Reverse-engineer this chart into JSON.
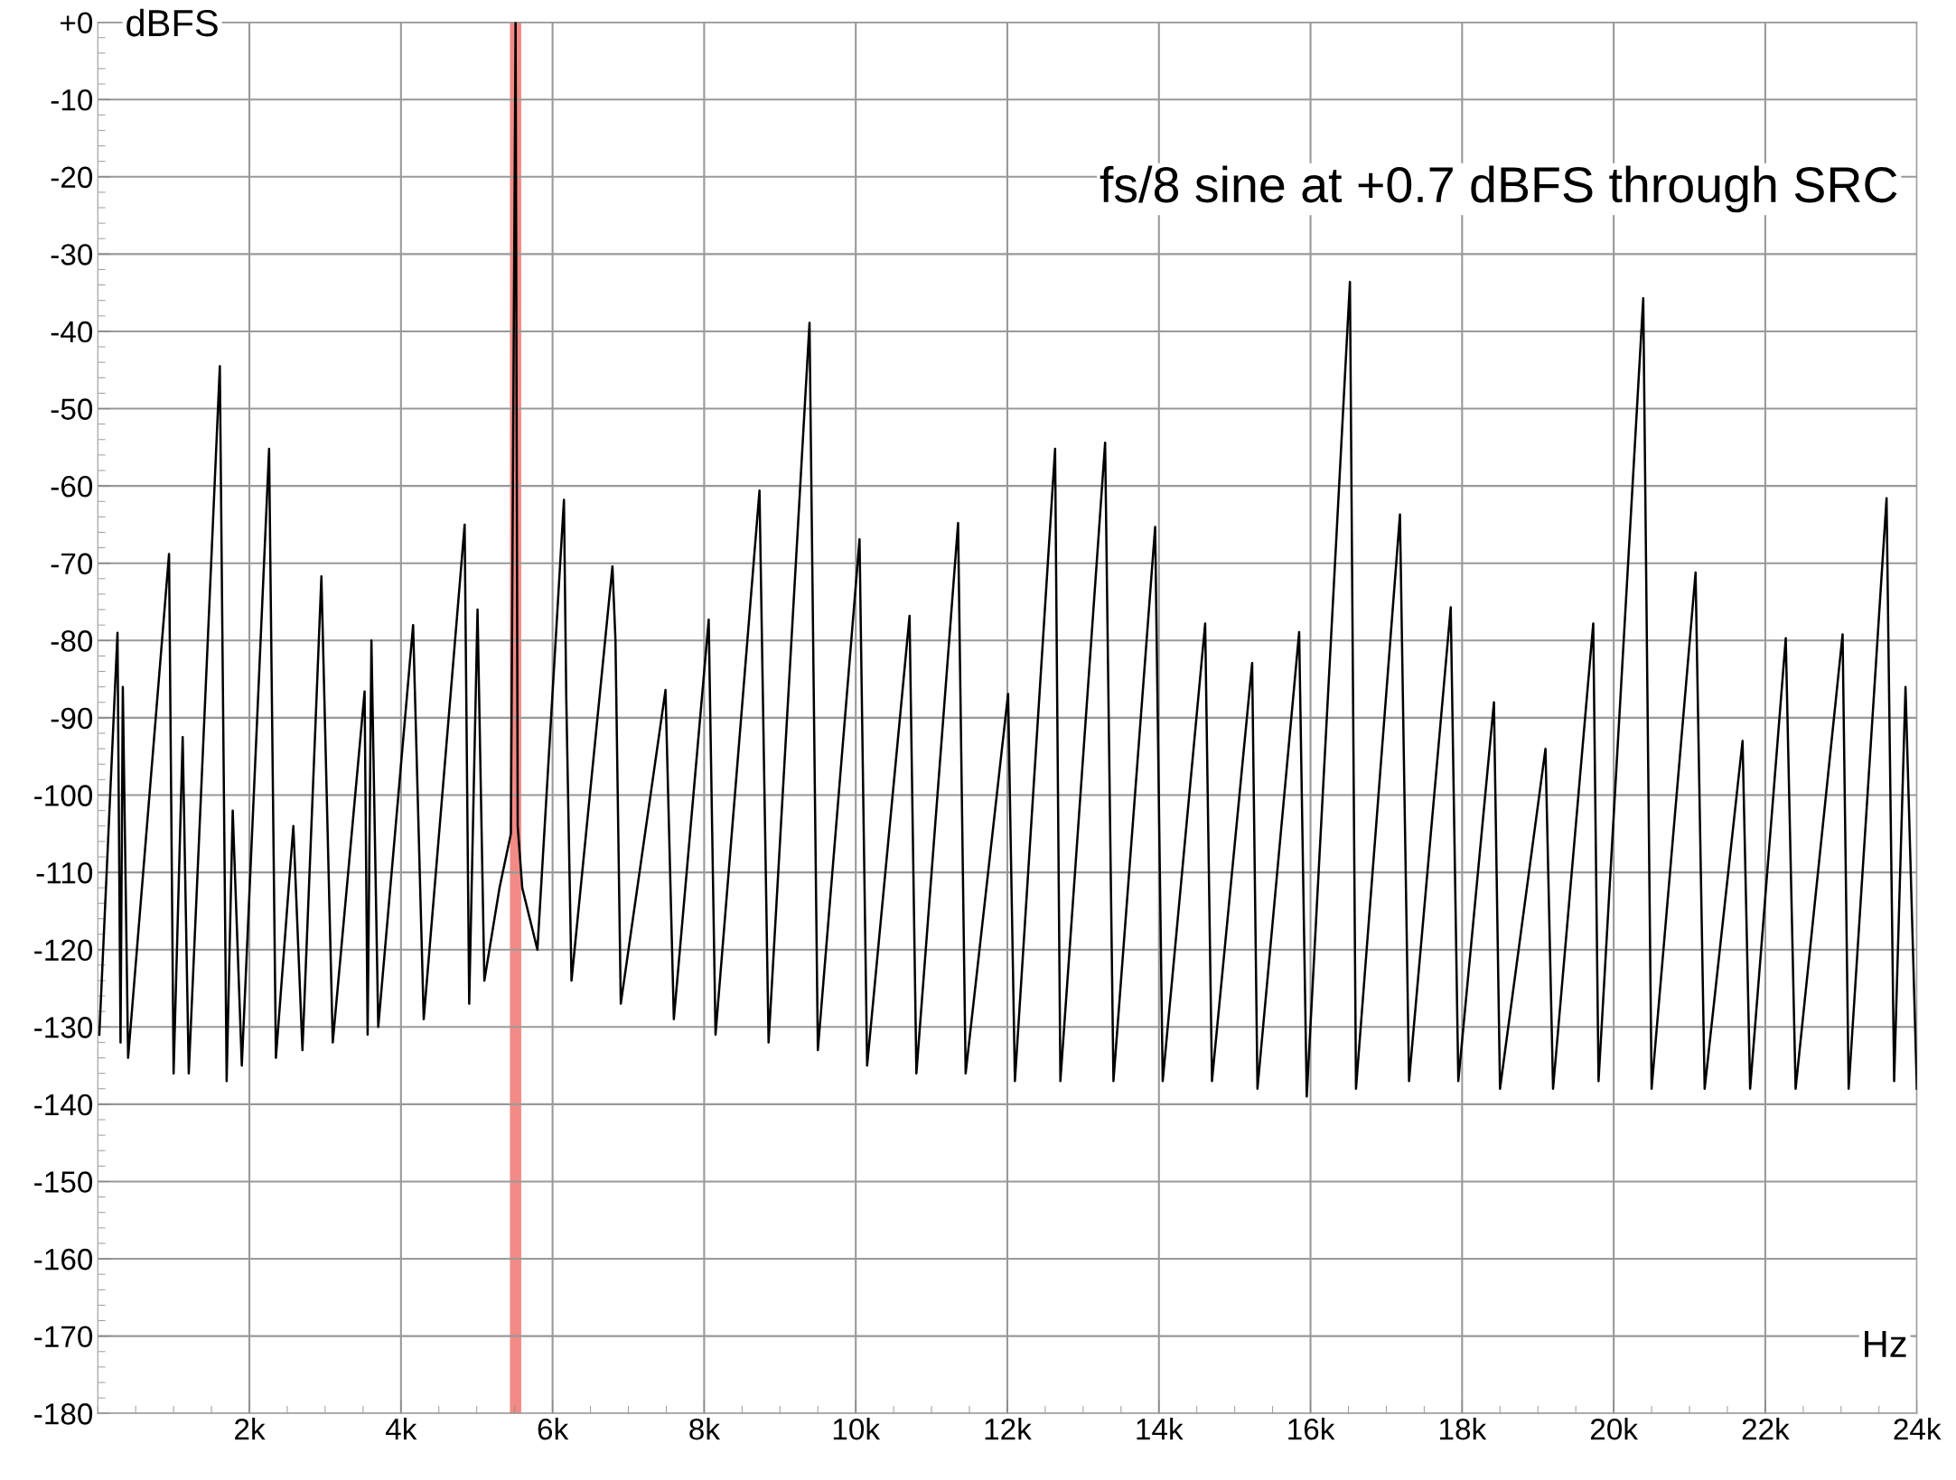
{
  "chart_data": {
    "type": "line",
    "ylabel": "dBFS",
    "xlabel": "Hz",
    "annotations": [
      "fs/8 sine at +0.7 dBFS through SRC"
    ],
    "xlim": [
      0,
      24000
    ],
    "ylim": [
      -180,
      0
    ],
    "xticks": [
      {
        "value": 2000,
        "label": "2k"
      },
      {
        "value": 4000,
        "label": "4k"
      },
      {
        "value": 6000,
        "label": "6k"
      },
      {
        "value": 8000,
        "label": "8k"
      },
      {
        "value": 10000,
        "label": "10k"
      },
      {
        "value": 12000,
        "label": "12k"
      },
      {
        "value": 14000,
        "label": "14k"
      },
      {
        "value": 16000,
        "label": "16k"
      },
      {
        "value": 18000,
        "label": "18k"
      },
      {
        "value": 20000,
        "label": "20k"
      },
      {
        "value": 22000,
        "label": "22k"
      },
      {
        "value": 24000,
        "label": "24k"
      }
    ],
    "yticks": [
      {
        "value": 0,
        "label": "+0"
      },
      -10,
      -20,
      -30,
      -40,
      -50,
      -60,
      -70,
      -80,
      -90,
      -100,
      -110,
      -120,
      -130,
      -140,
      -150,
      -160,
      -170,
      -180
    ],
    "grid": true,
    "legend": false,
    "ref_lines": [
      {
        "axis": "x",
        "value": 5512,
        "color": "#f28a86"
      }
    ],
    "series": [
      {
        "color": "#000000",
        "x": [
          20,
          260,
          300,
          330,
          400,
          940,
          1000,
          1120,
          1200,
          1610,
          1700,
          1780,
          1900,
          2260,
          2350,
          2580,
          2700,
          2950,
          3100,
          3520,
          3560,
          3610,
          3700,
          4160,
          4300,
          4840,
          4900,
          5010,
          5100,
          5300,
          5450,
          5512,
          5540,
          5600,
          5800,
          6150,
          6180,
          6250,
          6790,
          6830,
          6900,
          7490,
          7600,
          8060,
          8150,
          8730,
          8850,
          9390,
          9500,
          10050,
          10150,
          10710,
          10800,
          11350,
          11450,
          12010,
          12100,
          12630,
          12700,
          13290,
          13400,
          13950,
          14050,
          14610,
          14700,
          15230,
          15300,
          15850,
          15950,
          16520,
          16600,
          17180,
          17300,
          17850,
          17950,
          18420,
          18500,
          19100,
          19200,
          19730,
          19800,
          20390,
          20500,
          21080,
          21200,
          21700,
          21800,
          22270,
          22400,
          23020,
          23100,
          23600,
          23700,
          23850,
          24000
        ],
        "values": [
          -131,
          -79,
          -132,
          -86,
          -134,
          -68.8,
          -136,
          -92.5,
          -136,
          -44.5,
          -137,
          -102,
          -135,
          -55.2,
          -134,
          -104,
          -133,
          -71.7,
          -132,
          -86.6,
          -131,
          -80,
          -130,
          -78,
          -129,
          -65,
          -127,
          -76,
          -124,
          -112,
          -105,
          0,
          -104,
          -112,
          -120,
          -61.8,
          -87,
          -124,
          -70.4,
          -80,
          -127,
          -86.4,
          -129,
          -77.3,
          -131,
          -60.6,
          -132,
          -38.9,
          -133,
          -66.9,
          -135,
          -76.8,
          -136,
          -64.8,
          -136,
          -86.9,
          -137,
          -55.2,
          -137,
          -54.4,
          -137,
          -65.3,
          -137,
          -77.8,
          -137,
          -82.9,
          -138,
          -78.9,
          -139,
          -33.6,
          -138,
          -63.7,
          -137,
          -75.7,
          -137,
          -88,
          -138,
          -94,
          -138,
          -77.8,
          -137,
          -35.7,
          -138,
          -71.2,
          -138,
          -93,
          -138,
          -79.7,
          -138,
          -79.2,
          -138,
          -61.6,
          -137,
          -86,
          -138
        ]
      }
    ]
  }
}
